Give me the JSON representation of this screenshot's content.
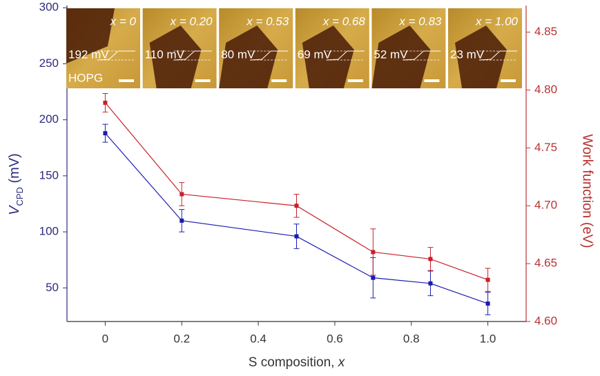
{
  "chart_data": {
    "type": "line",
    "xlabel": {
      "text": "S composition, ",
      "var": "x"
    },
    "ylabel": {
      "main": "V",
      "sub": "CPD",
      "unit": " (mV)"
    },
    "y2label": "Work function (eV)",
    "x": [
      0,
      0.2,
      0.5,
      0.7,
      0.85,
      1.0
    ],
    "series": [
      {
        "color": "#1a1ab4",
        "values": [
          188,
          110,
          96,
          59,
          54,
          36
        ],
        "errors": [
          8,
          10,
          11,
          18,
          11,
          10
        ]
      },
      {
        "color": "#c8202a",
        "axis": "y2",
        "values": [
          4.789,
          4.71,
          4.7,
          4.66,
          4.654,
          4.636
        ],
        "errors": [
          0.008,
          0.01,
          0.01,
          0.02,
          0.01,
          0.01
        ]
      }
    ],
    "xlim": [
      -0.1,
      1.1
    ],
    "xticks": [
      0,
      {
        "value": 0.2,
        "label": "0.2"
      },
      {
        "value": 0.4,
        "label": "0.4"
      },
      {
        "value": 0.6,
        "label": "0.6"
      },
      {
        "value": 0.8,
        "label": "0.8"
      },
      {
        "value": 1,
        "label": "1.0"
      }
    ],
    "ylim": [
      20,
      302
    ],
    "yticks": [
      50,
      100,
      150,
      200,
      250,
      300
    ],
    "y2lim": [
      4.6,
      4.873
    ],
    "y2ticks": [
      {
        "value": 4.6,
        "label": "4.60"
      },
      4.65,
      {
        "value": 4.7,
        "label": "4.70"
      },
      4.75,
      {
        "value": 4.8,
        "label": "4.80"
      },
      4.85
    ],
    "left_axis_color": "#2b2b80",
    "right_axis_color": "#b83232",
    "insets": [
      {
        "composition": "x = 0",
        "cpd": "192 mV",
        "substrate": "HOPG"
      },
      {
        "composition": "x = 0.20",
        "cpd": "110 mV"
      },
      {
        "composition": "x = 0.53",
        "cpd": "80 mV"
      },
      {
        "composition": "x = 0.68",
        "cpd": "69 mV"
      },
      {
        "composition": "x = 0.83",
        "cpd": "52 mV"
      },
      {
        "composition": "x = 1.00",
        "cpd": "23 mV"
      }
    ]
  }
}
